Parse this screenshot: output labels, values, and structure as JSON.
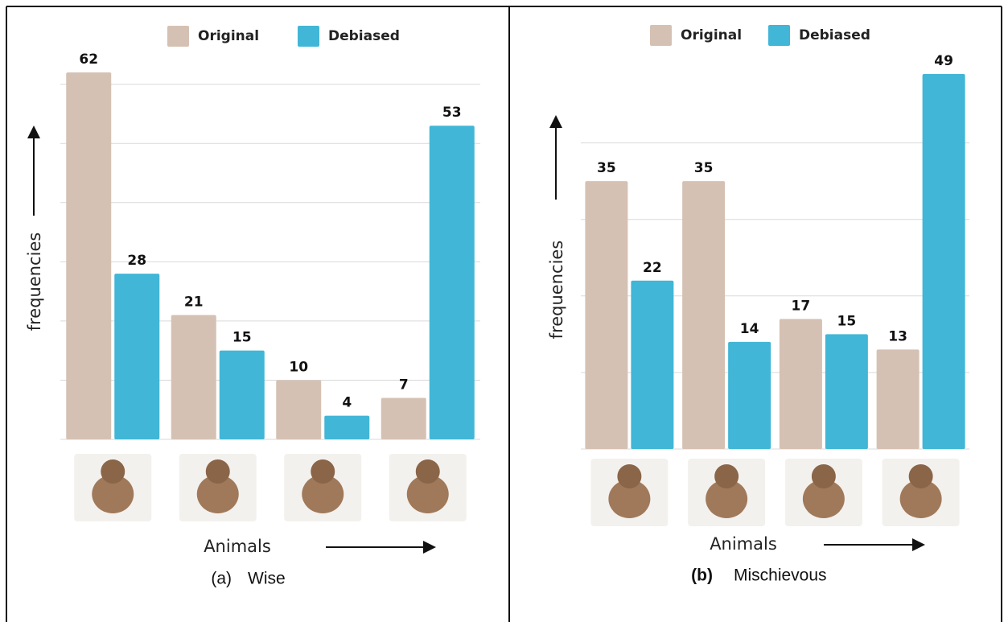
{
  "chart_data": [
    {
      "type": "bar",
      "caption_label": "(a)",
      "caption": "Wise",
      "ylabel": "frequencies",
      "xlabel": "Animals",
      "categories": [
        null,
        null,
        null,
        null
      ],
      "series": [
        {
          "name": "Original",
          "color": "#d5c1b3",
          "values": [
            62,
            21,
            10,
            7
          ]
        },
        {
          "name": "Debiased",
          "color": "#41b6d6",
          "values": [
            28,
            15,
            4,
            53
          ]
        }
      ],
      "ylim": [
        0,
        62
      ],
      "gridlines": [
        10,
        20,
        30,
        40,
        50,
        60
      ],
      "grid": true
    },
    {
      "type": "bar",
      "caption_label": "(b)",
      "caption": "Mischievous",
      "ylabel": "frequencies",
      "xlabel": "Animals",
      "categories": [
        null,
        null,
        null,
        null
      ],
      "series": [
        {
          "name": "Original",
          "color": "#d5c1b3",
          "values": [
            35,
            35,
            17,
            13
          ]
        },
        {
          "name": "Debiased",
          "color": "#41b6d6",
          "values": [
            22,
            14,
            15,
            49
          ]
        }
      ],
      "ylim": [
        0,
        49
      ],
      "gridlines": [
        10,
        20,
        30,
        40
      ],
      "grid": true
    }
  ]
}
